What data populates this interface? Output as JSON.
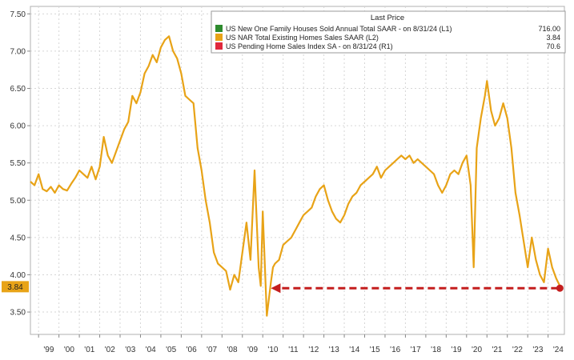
{
  "chart_data": {
    "type": "line",
    "title": "",
    "legend": {
      "placement": "top-right",
      "header": "Last Price",
      "entries": [
        {
          "label": "US New One Family Houses Sold Annual Total SAAR -  on 8/31/24  (L1)",
          "value": "716.00",
          "color": "#2e8b2e"
        },
        {
          "label": "US NAR Total Existing Homes Sales SAAR  (L2)",
          "value": "3.84",
          "color": "#e8a317"
        },
        {
          "label": "US Pending Home Sales Index SA -  on 8/31/24  (R1)",
          "value": "70.6",
          "color": "#e0283c"
        }
      ]
    },
    "x_ticks": [
      "'99",
      "'00",
      "'01",
      "'02",
      "'03",
      "'04",
      "'05",
      "'06",
      "'07",
      "'08",
      "'09",
      "'10",
      "'11",
      "'12",
      "'13",
      "'14",
      "'15",
      "'16",
      "'17",
      "'18",
      "'19",
      "'20",
      "'21",
      "'22",
      "'23",
      "'24"
    ],
    "y_ticks": [
      "3.50",
      "4.00",
      "4.50",
      "5.00",
      "5.50",
      "6.00",
      "6.50",
      "7.00",
      "7.50"
    ],
    "ylim": [
      3.2,
      7.6
    ],
    "xlim": [
      1998.6,
      2024.8
    ],
    "grid": true,
    "last_value_badge": "3.84",
    "series": [
      {
        "color": "#e8a317",
        "x": [
          1998.6,
          1998.8,
          1999.0,
          1999.2,
          1999.4,
          1999.6,
          1999.8,
          2000.0,
          2000.2,
          2000.4,
          2000.6,
          2000.8,
          2001.0,
          2001.2,
          2001.4,
          2001.6,
          2001.8,
          2002.0,
          2002.2,
          2002.4,
          2002.6,
          2002.8,
          2003.0,
          2003.2,
          2003.4,
          2003.6,
          2003.8,
          2004.0,
          2004.2,
          2004.4,
          2004.6,
          2004.8,
          2005.0,
          2005.2,
          2005.4,
          2005.6,
          2005.8,
          2006.0,
          2006.2,
          2006.4,
          2006.6,
          2006.8,
          2007.0,
          2007.2,
          2007.4,
          2007.6,
          2007.8,
          2008.0,
          2008.2,
          2008.4,
          2008.6,
          2008.8,
          2009.0,
          2009.2,
          2009.4,
          2009.6,
          2009.8,
          2009.9,
          2010.0,
          2010.2,
          2010.4,
          2010.5,
          2010.6,
          2010.8,
          2011.0,
          2011.2,
          2011.4,
          2011.6,
          2011.8,
          2012.0,
          2012.2,
          2012.4,
          2012.6,
          2012.8,
          2013.0,
          2013.2,
          2013.4,
          2013.6,
          2013.8,
          2014.0,
          2014.2,
          2014.4,
          2014.6,
          2014.8,
          2015.0,
          2015.2,
          2015.4,
          2015.6,
          2015.8,
          2016.0,
          2016.2,
          2016.4,
          2016.6,
          2016.8,
          2017.0,
          2017.2,
          2017.4,
          2017.6,
          2017.8,
          2018.0,
          2018.2,
          2018.4,
          2018.6,
          2018.8,
          2019.0,
          2019.2,
          2019.4,
          2019.6,
          2019.8,
          2020.0,
          2020.2,
          2020.35,
          2020.5,
          2020.7,
          2020.9,
          2021.0,
          2021.2,
          2021.4,
          2021.6,
          2021.8,
          2022.0,
          2022.2,
          2022.4,
          2022.6,
          2022.8,
          2023.0,
          2023.2,
          2023.4,
          2023.6,
          2023.8,
          2024.0,
          2024.2,
          2024.4,
          2024.6
        ],
        "y": [
          5.25,
          5.2,
          5.35,
          5.15,
          5.12,
          5.18,
          5.1,
          5.2,
          5.15,
          5.13,
          5.22,
          5.3,
          5.4,
          5.35,
          5.3,
          5.45,
          5.28,
          5.45,
          5.85,
          5.6,
          5.5,
          5.65,
          5.8,
          5.95,
          6.05,
          6.4,
          6.3,
          6.45,
          6.7,
          6.8,
          6.95,
          6.85,
          7.05,
          7.15,
          7.2,
          7.0,
          6.9,
          6.7,
          6.4,
          6.35,
          6.3,
          5.7,
          5.4,
          5.0,
          4.7,
          4.3,
          4.15,
          4.1,
          4.05,
          3.8,
          4.0,
          3.9,
          4.3,
          4.7,
          4.2,
          5.4,
          4.1,
          3.85,
          4.85,
          3.45,
          3.9,
          4.1,
          4.15,
          4.2,
          4.4,
          4.45,
          4.5,
          4.6,
          4.7,
          4.8,
          4.85,
          4.9,
          5.05,
          5.15,
          5.2,
          5.0,
          4.85,
          4.75,
          4.7,
          4.8,
          4.95,
          5.05,
          5.1,
          5.2,
          5.25,
          5.3,
          5.35,
          5.45,
          5.3,
          5.4,
          5.45,
          5.5,
          5.55,
          5.6,
          5.55,
          5.6,
          5.5,
          5.55,
          5.5,
          5.45,
          5.4,
          5.35,
          5.2,
          5.1,
          5.2,
          5.35,
          5.4,
          5.35,
          5.5,
          5.6,
          5.2,
          4.1,
          5.7,
          6.1,
          6.4,
          6.6,
          6.2,
          6.0,
          6.1,
          6.3,
          6.1,
          5.7,
          5.1,
          4.8,
          4.45,
          4.1,
          4.5,
          4.2,
          4.0,
          3.9,
          4.35,
          4.1,
          3.95,
          3.84
        ]
      }
    ],
    "annotations": [
      {
        "type": "dashed-arrow",
        "color": "#c41e1e",
        "x_from": 2024.5,
        "x_to": 2010.4,
        "y": 3.82
      }
    ]
  }
}
